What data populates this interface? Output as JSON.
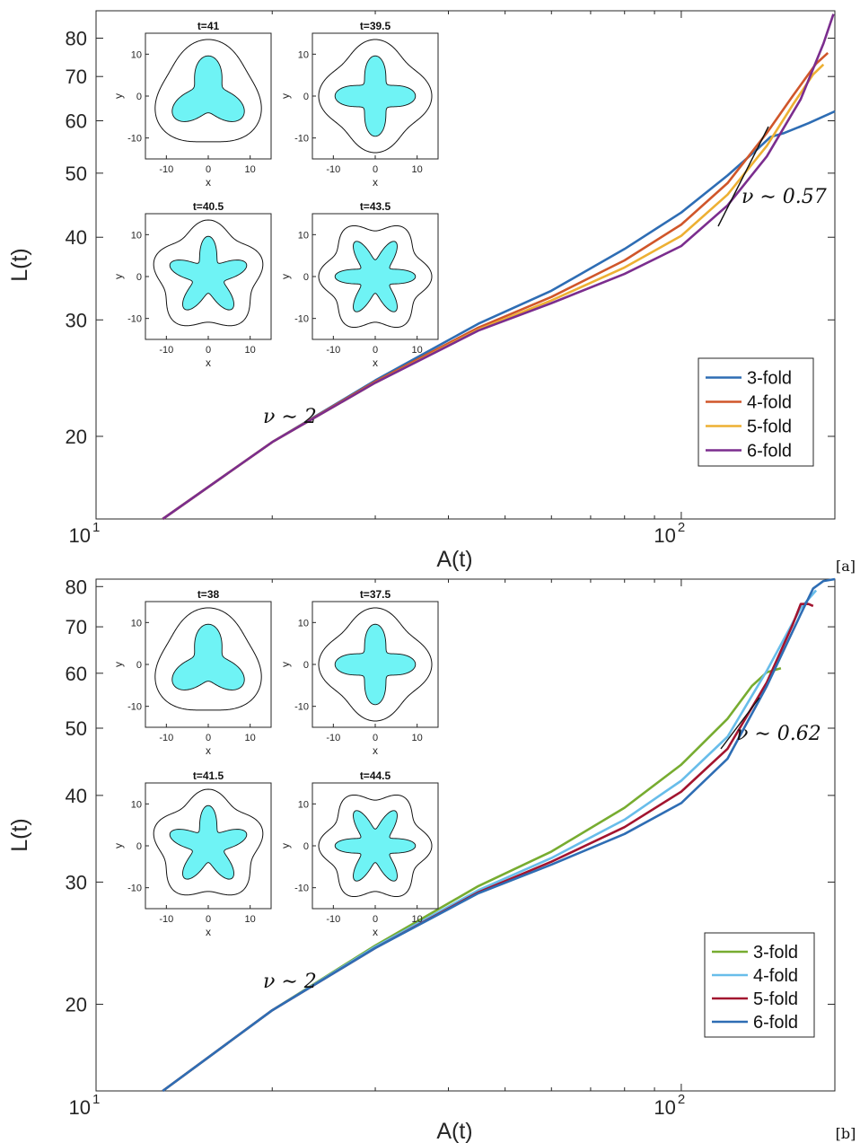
{
  "chart_data": [
    {
      "type": "line",
      "panel_label": "[a]",
      "xlabel": "A(t)",
      "ylabel": "L(t)",
      "xscale": "log",
      "yscale": "log",
      "xlim": [
        10,
        183
      ],
      "ylim": [
        15,
        88
      ],
      "x_ticks": [
        {
          "base": "10",
          "exp": "1"
        },
        {
          "base": "10",
          "exp": "2"
        }
      ],
      "y_ticks": [
        "20",
        "30",
        "40",
        "50",
        "60",
        "70",
        "80"
      ],
      "y_tick_values": [
        20,
        30,
        40,
        50,
        60,
        70,
        80
      ],
      "legend_position": "lower-right",
      "series": [
        {
          "name": "3-fold",
          "color": "#2e6db4",
          "x": [
            13,
            20,
            30,
            45,
            60,
            80,
            100,
            120,
            135,
            142,
            150,
            165,
            183
          ],
          "y": [
            15,
            19.6,
            24.3,
            29.6,
            33.2,
            38.4,
            43.6,
            49.6,
            54.4,
            56.7,
            57.5,
            59.5,
            62
          ]
        },
        {
          "name": "4-fold",
          "color": "#d0562a",
          "x": [
            13,
            20,
            30,
            45,
            60,
            80,
            100,
            120,
            140,
            155,
            170,
            178
          ],
          "y": [
            15,
            19.6,
            24.2,
            29.2,
            32.5,
            36.9,
            41.8,
            48.3,
            57.5,
            65.4,
            73.2,
            76
          ]
        },
        {
          "name": "5-fold",
          "color": "#edb033",
          "x": [
            13,
            20,
            30,
            45,
            60,
            80,
            100,
            120,
            140,
            155,
            168,
            175
          ],
          "y": [
            15,
            19.6,
            24.1,
            29,
            32.1,
            36,
            40.2,
            46.4,
            55,
            63.4,
            70.5,
            73
          ]
        },
        {
          "name": "6-fold",
          "color": "#7b2d8e",
          "x": [
            13,
            20,
            30,
            45,
            60,
            80,
            100,
            120,
            140,
            160,
            175,
            182
          ],
          "y": [
            15,
            19.6,
            24.1,
            28.9,
            31.8,
            35.2,
            38.8,
            44.7,
            53,
            64.7,
            78.5,
            87
          ]
        }
      ],
      "annotations": [
        {
          "text": "ν ∼ 2"
        },
        {
          "text": "ν ∼ 0.57"
        }
      ],
      "insets": [
        {
          "title": "t=41",
          "fold": 3,
          "xlabel": "x",
          "ylabel": "y",
          "ticks": [
            "-10",
            "0",
            "10"
          ]
        },
        {
          "title": "t=39.5",
          "fold": 4,
          "xlabel": "x",
          "ylabel": "y",
          "ticks": [
            "-10",
            "0",
            "10"
          ]
        },
        {
          "title": "t=40.5",
          "fold": 5,
          "xlabel": "x",
          "ylabel": "y",
          "ticks": [
            "-10",
            "0",
            "10"
          ]
        },
        {
          "title": "t=43.5",
          "fold": 6,
          "xlabel": "x",
          "ylabel": "y",
          "ticks": [
            "-10",
            "0",
            "10"
          ]
        }
      ]
    },
    {
      "type": "line",
      "panel_label": "[b]",
      "xlabel": "A(t)",
      "ylabel": "L(t)",
      "xscale": "log",
      "yscale": "log",
      "xlim": [
        10,
        183
      ],
      "ylim": [
        15,
        82
      ],
      "x_ticks": [
        {
          "base": "10",
          "exp": "1"
        },
        {
          "base": "10",
          "exp": "2"
        }
      ],
      "y_ticks": [
        "20",
        "30",
        "40",
        "50",
        "60",
        "70",
        "80"
      ],
      "y_tick_values": [
        20,
        30,
        40,
        50,
        60,
        70,
        80
      ],
      "legend_position": "lower-right",
      "series": [
        {
          "name": "3-fold",
          "color": "#77ac30",
          "x": [
            13,
            20,
            30,
            45,
            60,
            80,
            100,
            120,
            132,
            140,
            148
          ],
          "y": [
            15,
            19.6,
            24.3,
            29.6,
            33.2,
            38.4,
            44.3,
            51.6,
            57.5,
            60.2,
            61
          ]
        },
        {
          "name": "4-fold",
          "color": "#68bdea",
          "x": [
            13,
            20,
            30,
            45,
            60,
            80,
            100,
            120,
            140,
            160,
            170
          ],
          "y": [
            15,
            19.6,
            24.2,
            29.2,
            32.5,
            36.9,
            42,
            48.6,
            60.5,
            74.5,
            79
          ]
        },
        {
          "name": "5-fold",
          "color": "#a2142f",
          "x": [
            13,
            20,
            30,
            45,
            60,
            80,
            100,
            120,
            140,
            155,
            160,
            165,
            168
          ],
          "y": [
            15,
            19.6,
            24.1,
            29,
            32.1,
            36,
            40.5,
            46.7,
            58.2,
            70.5,
            75.5,
            75.5,
            75
          ]
        },
        {
          "name": "6-fold",
          "color": "#2e6db4",
          "x": [
            13,
            20,
            30,
            45,
            60,
            80,
            100,
            120,
            140,
            160,
            168,
            175,
            183
          ],
          "y": [
            15,
            19.6,
            24.1,
            28.9,
            31.8,
            35.2,
            39,
            45.2,
            57.5,
            73,
            79.5,
            81.5,
            82
          ]
        }
      ],
      "annotations": [
        {
          "text": "ν ∼ 2"
        },
        {
          "text": "ν ∼ 0.62"
        }
      ],
      "insets": [
        {
          "title": "t=38",
          "fold": 3,
          "xlabel": "x",
          "ylabel": "y",
          "ticks": [
            "-10",
            "0",
            "10"
          ]
        },
        {
          "title": "t=37.5",
          "fold": 4,
          "xlabel": "x",
          "ylabel": "y",
          "ticks": [
            "-10",
            "0",
            "10"
          ]
        },
        {
          "title": "t=41.5",
          "fold": 5,
          "xlabel": "x",
          "ylabel": "y",
          "ticks": [
            "-10",
            "0",
            "10"
          ]
        },
        {
          "title": "t=44.5",
          "fold": 6,
          "xlabel": "x",
          "ylabel": "y",
          "ticks": [
            "-10",
            "0",
            "10"
          ]
        }
      ]
    }
  ]
}
